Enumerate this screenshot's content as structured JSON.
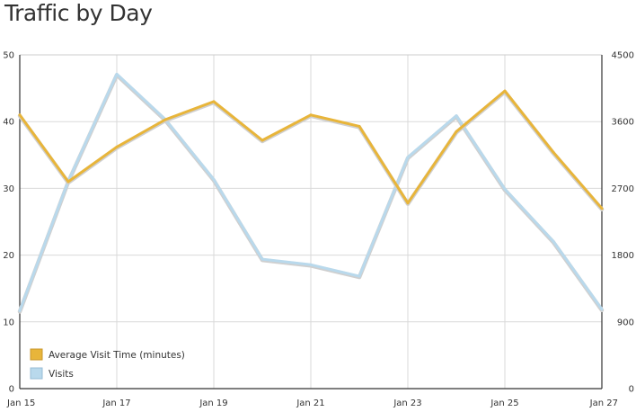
{
  "chart_data": {
    "type": "line",
    "title": "Traffic by Day",
    "x": [
      "Jan 15",
      "Jan 16",
      "Jan 17",
      "Jan 18",
      "Jan 19",
      "Jan 20",
      "Jan 21",
      "Jan 22",
      "Jan 23",
      "Jan 24",
      "Jan 25",
      "Jan 26",
      "Jan 27"
    ],
    "x_tick_labels": [
      "Jan 15",
      "Jan 17",
      "Jan 19",
      "Jan 21",
      "Jan 23",
      "Jan 25",
      "Jan 27"
    ],
    "series": [
      {
        "name": "Average Visit Time (minutes)",
        "axis": "left",
        "color": "#e8b53a",
        "values": [
          41,
          31,
          36.2,
          40.3,
          43,
          37.2,
          41,
          39.3,
          27.8,
          38.5,
          44.6,
          35.4,
          27
        ]
      },
      {
        "name": "Visits",
        "axis": "right",
        "color": "#b9d9ec",
        "values": [
          1050,
          2800,
          4240,
          3630,
          2820,
          1745,
          1670,
          1515,
          3120,
          3680,
          2690,
          1985,
          1070
        ]
      }
    ],
    "y_left": {
      "min": 0,
      "max": 50,
      "ticks": [
        "0",
        "10",
        "20",
        "30",
        "40",
        "50"
      ]
    },
    "y_right": {
      "min": 0,
      "max": 4500,
      "ticks": [
        "0",
        "900",
        "1800",
        "2700",
        "3600",
        "4500"
      ]
    },
    "grid": true,
    "legend_position": "bottom-left"
  }
}
